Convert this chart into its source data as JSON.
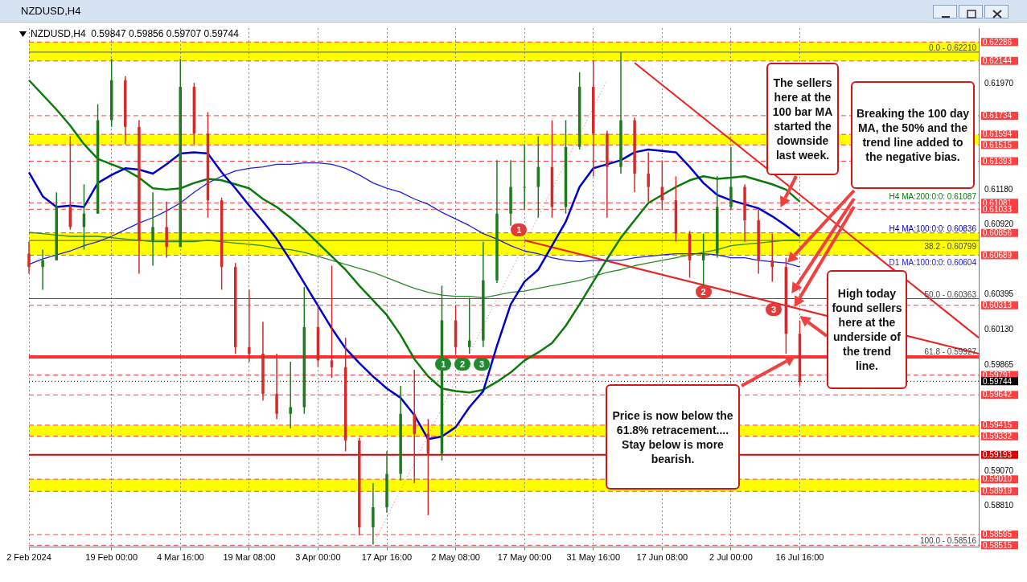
{
  "chart_data": {
    "type": "candlestick",
    "title": "NZDUSD,H4",
    "subtitle": "NZDUSD,H4  0.59847 0.59856 0.59707 0.59744",
    "categories": [
      "2 Feb 2024",
      null,
      null,
      null,
      null,
      null,
      "19 Feb 00:00",
      null,
      null,
      null,
      null,
      "4 Mar 16:00",
      null,
      null,
      null,
      null,
      "19 Mar 08:00",
      null,
      null,
      null,
      null,
      "3 Apr 00:00",
      null,
      null,
      null,
      null,
      "17 Apr 16:00",
      null,
      null,
      null,
      null,
      "2 May 08:00",
      null,
      null,
      null,
      null,
      "17 May 00:00",
      null,
      null,
      null,
      null,
      "31 May 16:00",
      null,
      null,
      null,
      null,
      "17 Jun 08:00",
      null,
      null,
      null,
      null,
      "2 Jul 00:00",
      null,
      null,
      null,
      null,
      "16 Jul 16:00",
      null,
      null,
      null,
      null,
      null,
      null,
      null,
      null,
      null,
      null,
      null,
      null,
      null
    ],
    "ohlc": [
      [
        0.607,
        0.6079,
        0.6055,
        0.606
      ],
      [
        0.606,
        0.6073,
        0.6043,
        0.6065
      ],
      [
        0.6065,
        0.6116,
        0.6065,
        0.6105
      ],
      [
        0.6105,
        0.6158,
        0.6088,
        0.609
      ],
      [
        0.609,
        0.6122,
        0.6073,
        0.61
      ],
      [
        0.61,
        0.6182,
        0.61,
        0.617
      ],
      [
        0.617,
        0.6216,
        0.6165,
        0.62
      ],
      [
        0.62,
        0.6203,
        0.6152,
        0.6165
      ],
      [
        0.6165,
        0.617,
        0.6055,
        0.608
      ],
      [
        0.608,
        0.6116,
        0.6061,
        0.609
      ],
      [
        0.609,
        0.6109,
        0.6067,
        0.6075
      ],
      [
        0.6075,
        0.6216,
        0.6075,
        0.6195
      ],
      [
        0.6195,
        0.6198,
        0.6152,
        0.616
      ],
      [
        0.616,
        0.6176,
        0.6097,
        0.611
      ],
      [
        0.611,
        0.6112,
        0.6043,
        0.606
      ],
      [
        0.606,
        0.6063,
        0.5995,
        0.6
      ],
      [
        0.6,
        0.6043,
        0.5989,
        0.5995
      ],
      [
        0.5995,
        0.6019,
        0.596,
        0.5965
      ],
      [
        0.5965,
        0.5995,
        0.5946,
        0.595
      ],
      [
        0.595,
        0.5989,
        0.5939,
        0.5955
      ],
      [
        0.5955,
        0.6045,
        0.595,
        0.6015
      ],
      [
        0.6015,
        0.6031,
        0.5985,
        0.599
      ],
      [
        0.599,
        0.6061,
        0.5977,
        0.5985
      ],
      [
        0.5985,
        0.6007,
        0.5922,
        0.593
      ],
      [
        0.593,
        0.5932,
        0.5859,
        0.5865
      ],
      [
        0.5865,
        0.5898,
        0.5852,
        0.588
      ],
      [
        0.588,
        0.5922,
        0.5876,
        0.5905
      ],
      [
        0.5905,
        0.5971,
        0.59,
        0.595
      ],
      [
        0.595,
        0.5983,
        0.5898,
        0.5935
      ],
      [
        0.5935,
        0.5946,
        0.5874,
        0.592
      ],
      [
        0.592,
        0.6046,
        0.5915,
        0.602
      ],
      [
        0.602,
        0.6031,
        0.5995,
        0.6
      ],
      [
        0.6,
        0.6037,
        0.5995,
        0.6005
      ],
      [
        0.6005,
        0.6079,
        0.6,
        0.605
      ],
      [
        0.605,
        0.614,
        0.6048,
        0.61
      ],
      [
        0.61,
        0.614,
        0.6091,
        0.612
      ],
      [
        0.612,
        0.6152,
        0.6103,
        0.612
      ],
      [
        0.612,
        0.6158,
        0.6097,
        0.6135
      ],
      [
        0.6135,
        0.617,
        0.6097,
        0.6105
      ],
      [
        0.6105,
        0.617,
        0.61,
        0.615
      ],
      [
        0.615,
        0.6206,
        0.6148,
        0.6195
      ],
      [
        0.6195,
        0.6215,
        0.6128,
        0.616
      ],
      [
        0.616,
        0.6162,
        0.6097,
        0.6135
      ],
      [
        0.6135,
        0.6221,
        0.613,
        0.617
      ],
      [
        0.617,
        0.6172,
        0.6116,
        0.613
      ],
      [
        0.613,
        0.6146,
        0.6109,
        0.612
      ],
      [
        0.612,
        0.614,
        0.6103,
        0.611
      ],
      [
        0.611,
        0.6128,
        0.6079,
        0.6085
      ],
      [
        0.6085,
        0.6087,
        0.6052,
        0.6065
      ],
      [
        0.6065,
        0.6085,
        0.6046,
        0.607
      ],
      [
        0.607,
        0.6128,
        0.6067,
        0.6105
      ],
      [
        0.6105,
        0.615,
        0.6103,
        0.612
      ],
      [
        0.612,
        0.6122,
        0.6079,
        0.6095
      ],
      [
        0.6095,
        0.6103,
        0.6055,
        0.6065
      ],
      [
        0.6065,
        0.6085,
        0.6049,
        0.606
      ],
      [
        0.606,
        0.6067,
        0.5995,
        0.601
      ],
      [
        0.601,
        0.602,
        0.5971,
        0.5974
      ],
      null,
      null,
      null,
      null,
      null,
      null,
      null,
      null,
      null,
      null,
      null,
      null,
      null
    ],
    "series": [
      {
        "type": "line",
        "name": "H4 MA:100:0:0: 0.60836",
        "color": "#0000cc",
        "values": [
          0.6131,
          0.6113,
          0.6105,
          0.6106,
          0.6105,
          0.6123,
          0.6129,
          0.6134,
          0.6133,
          0.613,
          0.6137,
          0.6145,
          0.6146,
          0.6145,
          0.6131,
          0.6119,
          0.6106,
          0.6094,
          0.6081,
          0.6065,
          0.6048,
          0.6031,
          0.6014,
          0.5999,
          0.5988,
          0.5978,
          0.5969,
          0.5962,
          0.5949,
          0.5931,
          0.5933,
          0.594,
          0.5955,
          0.5967,
          0.6001,
          0.6032,
          0.6049,
          0.6058,
          0.6076,
          0.6094,
          0.612,
          0.6134,
          0.6137,
          0.614,
          0.6146,
          0.6148,
          0.6147,
          0.6146,
          0.6135,
          0.6123,
          0.6114,
          0.611,
          0.6107,
          0.6104,
          0.6098,
          0.6091,
          0.6083,
          null,
          null,
          null,
          null,
          null,
          null,
          null,
          null,
          null,
          null,
          null,
          null,
          null
        ]
      },
      {
        "type": "line",
        "name": "H4 MA:200:0:0: 0.61087",
        "color": "#0a7a0a",
        "values": [
          0.62,
          0.6189,
          0.6178,
          0.6166,
          0.6152,
          0.6141,
          0.6137,
          0.6133,
          0.6127,
          0.6119,
          0.6118,
          0.6119,
          0.6123,
          0.6126,
          0.6125,
          0.6122,
          0.6119,
          0.6111,
          0.6105,
          0.6097,
          0.6088,
          0.6078,
          0.6068,
          0.6058,
          0.6046,
          0.6035,
          0.6024,
          0.6009,
          0.5991,
          0.5978,
          0.5969,
          0.5967,
          0.5966,
          0.5968,
          0.5974,
          0.5981,
          0.599,
          0.5996,
          0.6003,
          0.6016,
          0.6032,
          0.6049,
          0.6066,
          0.6082,
          0.6095,
          0.6108,
          0.6114,
          0.612,
          0.6125,
          0.6128,
          0.6126,
          0.6127,
          0.6128,
          0.6125,
          0.6122,
          0.6118,
          0.6109,
          null,
          null,
          null,
          null,
          null,
          null,
          null,
          null,
          null,
          null,
          null,
          null,
          null
        ]
      },
      {
        "type": "line",
        "name": "D1 MA:100:0:0: 0.60604",
        "color": "#2020dd",
        "values": [
          0.6062,
          0.6066,
          0.6069,
          0.6072,
          0.6076,
          0.6079,
          0.6083,
          0.6088,
          0.6093,
          0.6097,
          0.6102,
          0.6108,
          0.6116,
          0.6123,
          0.6128,
          0.6132,
          0.6134,
          0.6135,
          0.6137,
          0.6137,
          0.6138,
          0.6138,
          0.6137,
          0.6134,
          0.6129,
          0.6123,
          0.6119,
          0.6116,
          0.6111,
          0.6107,
          0.6101,
          0.6096,
          0.6091,
          0.6085,
          0.6081,
          0.6076,
          0.6072,
          0.607,
          0.6067,
          0.6065,
          0.6064,
          0.6065,
          0.6065,
          0.6065,
          0.6067,
          0.6068,
          0.6069,
          0.607,
          0.607,
          0.607,
          0.6069,
          0.6067,
          0.6067,
          0.6065,
          0.6064,
          0.6063,
          0.606,
          null,
          null,
          null,
          null,
          null,
          null,
          null,
          null,
          null,
          null,
          null,
          null,
          null
        ]
      },
      {
        "type": "line",
        "color": "#2a8a2a",
        "values": [
          0.6086,
          0.6085,
          0.6084,
          0.6083,
          0.6083,
          0.6083,
          0.6082,
          0.6081,
          0.608,
          0.6079,
          0.6079,
          0.6079,
          0.6079,
          0.608,
          0.6079,
          0.6078,
          0.6077,
          0.6076,
          0.6074,
          0.6073,
          0.6071,
          0.6068,
          0.6065,
          0.6062,
          0.6059,
          0.6056,
          0.6052,
          0.6048,
          0.6044,
          0.6041,
          0.6039,
          0.6038,
          0.6038,
          0.6037,
          0.6039,
          0.6041,
          0.6042,
          0.6044,
          0.6046,
          0.6048,
          0.605,
          0.6053,
          0.6056,
          0.6058,
          0.6061,
          0.6063,
          0.6065,
          0.6067,
          0.6069,
          0.6071,
          0.6073,
          0.6076,
          0.6077,
          0.6078,
          0.6079,
          0.608,
          0.608,
          null,
          null,
          null,
          null,
          null,
          null,
          null,
          null,
          null,
          null,
          null,
          null,
          null
        ]
      },
      {
        "type": "line",
        "color": "#ee2020",
        "values": [
          null,
          null,
          null,
          null,
          null,
          null,
          null,
          null,
          null,
          null,
          null,
          null,
          null,
          null,
          null,
          null,
          null,
          null,
          null,
          null,
          null,
          null,
          null,
          null,
          null,
          null,
          null,
          null,
          null,
          null,
          null,
          null,
          null,
          null,
          null,
          null,
          null,
          null,
          null,
          null,
          null,
          null,
          null,
          null,
          0.6213,
          null,
          null,
          null,
          null,
          null,
          null,
          null,
          null,
          null,
          null,
          null,
          null,
          null,
          null,
          null,
          null,
          null,
          null,
          null,
          null,
          null,
          null,
          null,
          null,
          0.6007
        ]
      },
      {
        "type": "line",
        "color": "#ee2020",
        "values": [
          null,
          null,
          null,
          null,
          null,
          null,
          null,
          null,
          null,
          null,
          null,
          null,
          null,
          null,
          null,
          null,
          null,
          null,
          null,
          null,
          null,
          null,
          null,
          null,
          null,
          null,
          null,
          null,
          null,
          null,
          null,
          null,
          null,
          null,
          null,
          null,
          0.608,
          null,
          null,
          null,
          null,
          null,
          null,
          null,
          null,
          null,
          null,
          null,
          null,
          null,
          null,
          null,
          null,
          null,
          null,
          null,
          null,
          null,
          null,
          null,
          null,
          null,
          null,
          null,
          null,
          null,
          null,
          null,
          null,
          0.5995
        ]
      },
      {
        "type": "line",
        "color": "#ff6060",
        "line_style": "dotted",
        "values": [
          null,
          null,
          null,
          null,
          null,
          null,
          null,
          null,
          null,
          null,
          null,
          null,
          null,
          null,
          null,
          null,
          null,
          null,
          null,
          null,
          null,
          null,
          null,
          null,
          null,
          0.5852,
          null,
          null,
          null,
          null,
          null,
          null,
          null,
          null,
          null,
          null,
          null,
          null,
          null,
          null,
          null,
          null,
          0.62,
          null,
          null,
          null,
          null,
          null,
          null,
          null,
          null,
          null,
          null,
          null,
          null,
          null,
          null,
          null,
          null,
          null,
          null,
          null,
          null,
          null,
          null,
          null,
          null,
          null,
          null,
          null
        ]
      }
    ],
    "ylim": [
      0.585,
      0.6239
    ],
    "yticks": [
      {
        "value": 0.6197,
        "label": "0.61970"
      },
      {
        "value": 0.6118,
        "label": "0.61180"
      },
      {
        "value": 0.6092,
        "label": "0.60920"
      },
      {
        "value": 0.60395,
        "label": "0.60395"
      },
      {
        "value": 0.6013,
        "label": "0.60130"
      },
      {
        "value": 0.59865,
        "label": "0.59865"
      },
      {
        "value": 0.5907,
        "label": "0.59070"
      },
      {
        "value": 0.5881,
        "label": "0.58810"
      }
    ],
    "bands": [
      {
        "axis": "y",
        "from": 0.62144,
        "to": 0.62286,
        "color": "#ffff00"
      },
      {
        "axis": "y",
        "from": 0.61515,
        "to": 0.61594,
        "color": "#ffff00"
      },
      {
        "axis": "y",
        "from": 0.60689,
        "to": 0.60856,
        "color": "#ffff00"
      },
      {
        "axis": "y",
        "from": 0.59332,
        "to": 0.59415,
        "color": "#ffff00"
      },
      {
        "axis": "y",
        "from": 0.58919,
        "to": 0.5901,
        "color": "#ffff00"
      }
    ],
    "ref_lines": [
      {
        "axis": "y",
        "value": 0.62286,
        "label": "0.62286",
        "color": "#ff4040",
        "line_style": "dashed"
      },
      {
        "axis": "y",
        "value": 0.62144,
        "label": "0.62144",
        "color": "#ff4040",
        "line_style": "dashed"
      },
      {
        "axis": "y",
        "value": 0.61734,
        "label": "0.61734",
        "color": "#ff4040",
        "line_style": "dashed"
      },
      {
        "axis": "y",
        "value": 0.61594,
        "label": "0.61594",
        "color": "#ff4040",
        "line_style": "dashed"
      },
      {
        "axis": "y",
        "value": 0.61515,
        "label": "0.61515",
        "color": "#ff4040",
        "line_style": "dashed"
      },
      {
        "axis": "y",
        "value": 0.61393,
        "label": "0.61393",
        "color": "#ff4040",
        "line_style": "dashed"
      },
      {
        "axis": "y",
        "value": 0.61081,
        "label": "0.61081",
        "color": "#ff4040",
        "line_style": "dashed"
      },
      {
        "axis": "y",
        "value": 0.61033,
        "label": "0.61033",
        "color": "#ff4040",
        "line_style": "dashed"
      },
      {
        "axis": "y",
        "value": 0.60856,
        "label": "0.60856",
        "color": "#ff4040",
        "line_style": "dashed"
      },
      {
        "axis": "y",
        "value": 0.60689,
        "label": "0.60689",
        "color": "#ff4040",
        "line_style": "dashed"
      },
      {
        "axis": "y",
        "value": 0.60313,
        "label": "0.60313",
        "color": "#ff4040",
        "line_style": "dashed"
      },
      {
        "axis": "y",
        "value": 0.59791,
        "label": "0.59791",
        "color": "#ff4040",
        "line_style": "dashed"
      },
      {
        "axis": "y",
        "value": 0.59642,
        "label": "0.59642",
        "color": "#ff4040",
        "line_style": "dashed"
      },
      {
        "axis": "y",
        "value": 0.59415,
        "label": "0.59415",
        "color": "#ff4040",
        "line_style": "dashed"
      },
      {
        "axis": "y",
        "value": 0.59332,
        "label": "0.59332",
        "color": "#ff4040",
        "line_style": "dashed"
      },
      {
        "axis": "y",
        "value": 0.59193,
        "label": "0.59193",
        "color": "#dd0000",
        "line_style": "solid"
      },
      {
        "axis": "y",
        "value": 0.5901,
        "label": "0.59010",
        "color": "#ff4040",
        "line_style": "dashed"
      },
      {
        "axis": "y",
        "value": 0.58919,
        "label": "0.58919",
        "color": "#ff4040",
        "line_style": "dashed"
      },
      {
        "axis": "y",
        "value": 0.58595,
        "label": "0.58595",
        "color": "#ff4040",
        "line_style": "dashed"
      },
      {
        "axis": "y",
        "value": 0.58515,
        "label": "0.58515",
        "color": "#ff4040",
        "line_style": "dashed"
      },
      {
        "axis": "y",
        "value": 0.59744,
        "label": "0.59744",
        "color": "#000000",
        "line_style": "dotted"
      },
      {
        "axis": "y",
        "value": 0.6221,
        "color": "#555555",
        "line_style": "solid"
      },
      {
        "axis": "y",
        "value": 0.60799,
        "color": "#555555",
        "line_style": "solid"
      },
      {
        "axis": "y",
        "value": 0.60363,
        "color": "#555555",
        "line_style": "solid"
      },
      {
        "axis": "y",
        "value": 0.59927,
        "color": "#ff3030",
        "line_style": "solid"
      }
    ],
    "annotations": [
      "The sellers here at the 100 bar MA started the downside last week.",
      "Breaking the 100 day MA, the 50% and the trend line added to the negative bias.",
      "High today found sellers here at the underside of the trend line.",
      "Price is now below the 61.8% retracement.... Stay below is more bearish.",
      "1",
      "2",
      "3",
      "1",
      "2",
      "3",
      {
        "text": "0.0 - 0.62210",
        "y": 0.6221
      },
      {
        "text": "38.2 - 0.60799",
        "y": 0.60799
      },
      {
        "text": "50.0 - 0.60363",
        "y": 0.60363
      },
      {
        "text": "61.8 - 0.59927",
        "y": 0.59927
      },
      {
        "text": "100.0 - 0.58516",
        "y": 0.58516
      }
    ],
    "grid": "x",
    "marker": "none"
  }
}
